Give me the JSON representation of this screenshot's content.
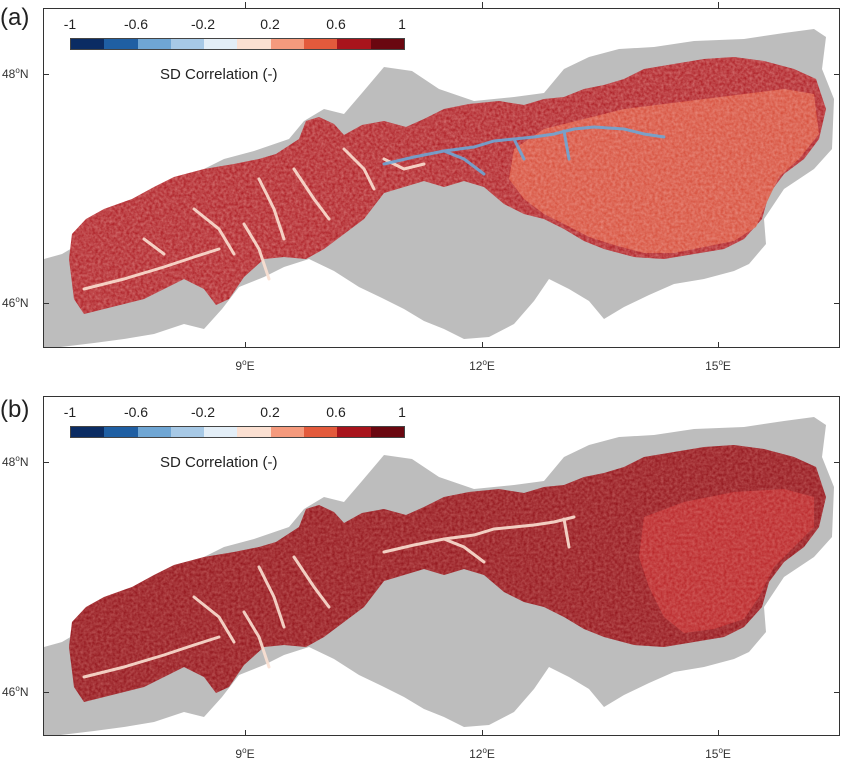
{
  "panels": [
    {
      "id": "a",
      "label": "(a)",
      "legend_title": "SD Correlation (-)",
      "variant": "a"
    },
    {
      "id": "b",
      "label": "(b)",
      "legend_title": "SD Correlation (-)",
      "variant": "b"
    }
  ],
  "colorbar": {
    "tick_labels": [
      "-1",
      "-0.6",
      "-0.2",
      "0.2",
      "0.6",
      "1"
    ],
    "colors": [
      "#0b2c63",
      "#1f5fa3",
      "#6fa6d4",
      "#a7c9e6",
      "#e3eef7",
      "#fbe0d2",
      "#f59a7d",
      "#e35a3c",
      "#a8141c",
      "#6a0710"
    ]
  },
  "axes": {
    "lat_labels": [
      {
        "deg": "48",
        "hemi": "N"
      },
      {
        "deg": "46",
        "hemi": "N"
      }
    ],
    "lon_labels": [
      {
        "deg": "9",
        "hemi": "E"
      },
      {
        "deg": "12",
        "hemi": "E"
      },
      {
        "deg": "15",
        "hemi": "E"
      }
    ]
  },
  "colors": {
    "domain_grey": "#bdbdbd",
    "frame": "#333333"
  }
}
